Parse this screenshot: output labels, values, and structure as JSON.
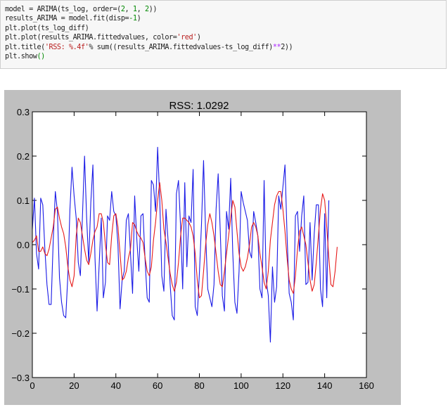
{
  "code_cell": {
    "lines": [
      [
        {
          "t": "model = ARIMA(ts_log, order=("
        },
        {
          "t": "2",
          "c": "num"
        },
        {
          "t": ", "
        },
        {
          "t": "1",
          "c": "num"
        },
        {
          "t": ", "
        },
        {
          "t": "2",
          "c": "num"
        },
        {
          "t": "))"
        }
      ],
      [
        {
          "t": "results_ARIMA = model.fit(disp="
        },
        {
          "t": "-1",
          "c": "num"
        },
        {
          "t": ")"
        }
      ],
      [
        {
          "t": "plt.plot(ts_log_diff)"
        }
      ],
      [
        {
          "t": "plt.plot(results_ARIMA.fittedvalues, color="
        },
        {
          "t": "'red'",
          "c": "str"
        },
        {
          "t": ")"
        }
      ],
      [
        {
          "t": "plt.title("
        },
        {
          "t": "'RSS: %.4f'",
          "c": "str"
        },
        {
          "t": "% sum((results_ARIMA.fittedvalues-ts_log_diff)"
        },
        {
          "t": "**",
          "c": "op"
        },
        {
          "t": "2"
        },
        {
          "t": "))"
        }
      ],
      [
        {
          "t": "plt.show"
        },
        {
          "t": "()",
          "c": "num"
        }
      ]
    ]
  },
  "chart_data": {
    "type": "line",
    "title": "RSS: 1.0292",
    "xlabel": "",
    "ylabel": "",
    "xlim": [
      0,
      160
    ],
    "ylim": [
      -0.3,
      0.3
    ],
    "x_ticks": [
      "0",
      "20",
      "40",
      "60",
      "80",
      "100",
      "120",
      "140",
      "160"
    ],
    "y_ticks": [
      "0.3",
      "0.2",
      "0.1",
      "0.0",
      "−0.1",
      "−0.2",
      "−0.3"
    ],
    "grid": false,
    "colors": {
      "series1": "#1a1ae6",
      "series2": "#e61a1a",
      "figure_bg": "#bfbfbf",
      "axes_bg": "#ffffff"
    },
    "series": [
      {
        "x_start": 0,
        "values": [
          0.035,
          0.105,
          -0.02,
          -0.055,
          0.105,
          0.09,
          -0.01,
          -0.09,
          -0.135,
          -0.135,
          0.01,
          0.12,
          0.075,
          -0.075,
          -0.13,
          -0.16,
          -0.165,
          -0.07,
          0.08,
          0.175,
          0.11,
          0.06,
          -0.04,
          -0.07,
          0.065,
          0.2,
          0.06,
          -0.04,
          0.095,
          0.18,
          -0.03,
          -0.15,
          -0.045,
          0.06,
          -0.12,
          -0.085,
          0.065,
          0.055,
          0.12,
          0.075,
          0.065,
          0.0,
          -0.145,
          -0.08,
          -0.06,
          0.055,
          0.07,
          -0.02,
          -0.11,
          0.11,
          0.015,
          -0.06,
          0.065,
          0.07,
          -0.035,
          -0.12,
          -0.13,
          0.145,
          0.135,
          0.075,
          0.22,
          0.105,
          -0.07,
          -0.105,
          0.08,
          0.01,
          -0.09,
          -0.16,
          -0.17,
          0.115,
          0.145,
          0.04,
          -0.1,
          0.14,
          -0.05,
          0.065,
          0.05,
          0.17,
          -0.14,
          -0.16,
          -0.065,
          0.045,
          0.19,
          0.025,
          -0.1,
          -0.12,
          -0.14,
          -0.09,
          0.08,
          0.16,
          0.03,
          -0.115,
          -0.15,
          0.075,
          0.035,
          0.15,
          -0.02,
          -0.13,
          -0.155,
          -0.06,
          0.12,
          0.095,
          0.075,
          0.055,
          -0.015,
          -0.03,
          0.075,
          0.05,
          0.02,
          -0.1,
          -0.12,
          0.145,
          -0.08,
          -0.115,
          -0.22,
          -0.05,
          -0.13,
          -0.095,
          0.11,
          0.08,
          0.13,
          0.18,
          0.02,
          -0.11,
          -0.13,
          -0.17,
          0.065,
          0.075,
          -0.015,
          0.065,
          0.11,
          -0.09,
          -0.085,
          0.05,
          -0.08,
          0.025,
          0.09,
          0.09,
          -0.1,
          -0.14,
          0.07,
          -0.12,
          0.1
        ]
      },
      {
        "x_start": 0,
        "values": [
          0.005,
          0.01,
          0.02,
          -0.015,
          -0.015,
          -0.005,
          -0.02,
          -0.025,
          -0.01,
          0.015,
          0.04,
          0.08,
          0.085,
          0.06,
          0.04,
          0.025,
          -0.005,
          -0.05,
          -0.08,
          -0.095,
          -0.07,
          0.02,
          0.06,
          0.05,
          0.02,
          -0.01,
          -0.035,
          -0.045,
          -0.02,
          0.01,
          0.03,
          0.04,
          0.07,
          0.07,
          0.05,
          0.0,
          -0.04,
          -0.045,
          0.02,
          0.065,
          0.07,
          0.04,
          -0.02,
          -0.08,
          -0.075,
          -0.06,
          -0.03,
          -0.01,
          0.05,
          0.045,
          0.03,
          0.02,
          0.015,
          0.005,
          -0.03,
          -0.06,
          -0.07,
          -0.05,
          0.01,
          0.05,
          0.1,
          0.14,
          0.1,
          0.035,
          0.005,
          -0.03,
          -0.065,
          -0.09,
          -0.105,
          -0.085,
          -0.04,
          0.02,
          0.06,
          0.06,
          0.055,
          0.05,
          0.04,
          0.02,
          -0.02,
          -0.08,
          -0.12,
          -0.115,
          -0.06,
          0.0,
          0.045,
          0.07,
          0.05,
          0.02,
          -0.02,
          -0.06,
          -0.09,
          -0.095,
          -0.06,
          -0.02,
          0.02,
          0.06,
          0.1,
          0.085,
          0.03,
          -0.02,
          -0.05,
          -0.06,
          -0.05,
          -0.03,
          0.0,
          0.04,
          0.05,
          0.04,
          0.02,
          -0.02,
          -0.05,
          -0.085,
          -0.1,
          -0.06,
          0.01,
          0.05,
          0.09,
          0.11,
          0.12,
          0.12,
          0.08,
          0.03,
          -0.03,
          -0.08,
          -0.1,
          -0.11,
          -0.07,
          -0.01,
          0.03,
          0.04,
          0.02,
          0.0,
          -0.04,
          -0.08,
          -0.105,
          -0.09,
          -0.04,
          0.02,
          0.08,
          0.115,
          0.1,
          0.04,
          -0.03,
          -0.09,
          -0.095,
          -0.06,
          -0.005
        ]
      }
    ]
  }
}
